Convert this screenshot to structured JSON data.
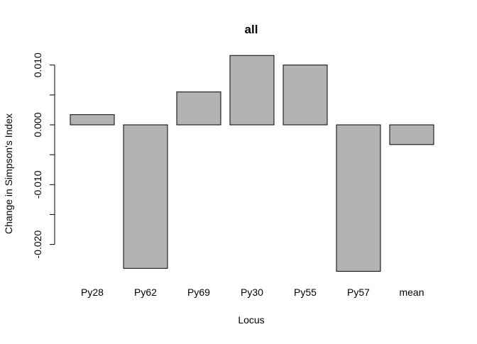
{
  "chart_data": {
    "type": "bar",
    "title": "all",
    "xlabel": "Locus",
    "ylabel": "Change in Simpson's Index",
    "categories": [
      "Py28",
      "Py62",
      "Py69",
      "Py30",
      "Py55",
      "Py57",
      "mean"
    ],
    "values": [
      0.0017,
      -0.024,
      0.0055,
      0.0116,
      0.01,
      -0.0245,
      -0.0033
    ],
    "ylim": [
      -0.025,
      0.0125
    ],
    "y_ticks": [
      -0.02,
      -0.015,
      -0.01,
      -0.005,
      0.0,
      0.005,
      0.01
    ],
    "y_tick_labels": [
      "-0.020",
      "",
      "-0.010",
      "",
      "0.000",
      "",
      "0.010"
    ],
    "bar_color": "#b3b3b3",
    "bar_border_color": "#000000",
    "grid": false,
    "legend": "none"
  }
}
